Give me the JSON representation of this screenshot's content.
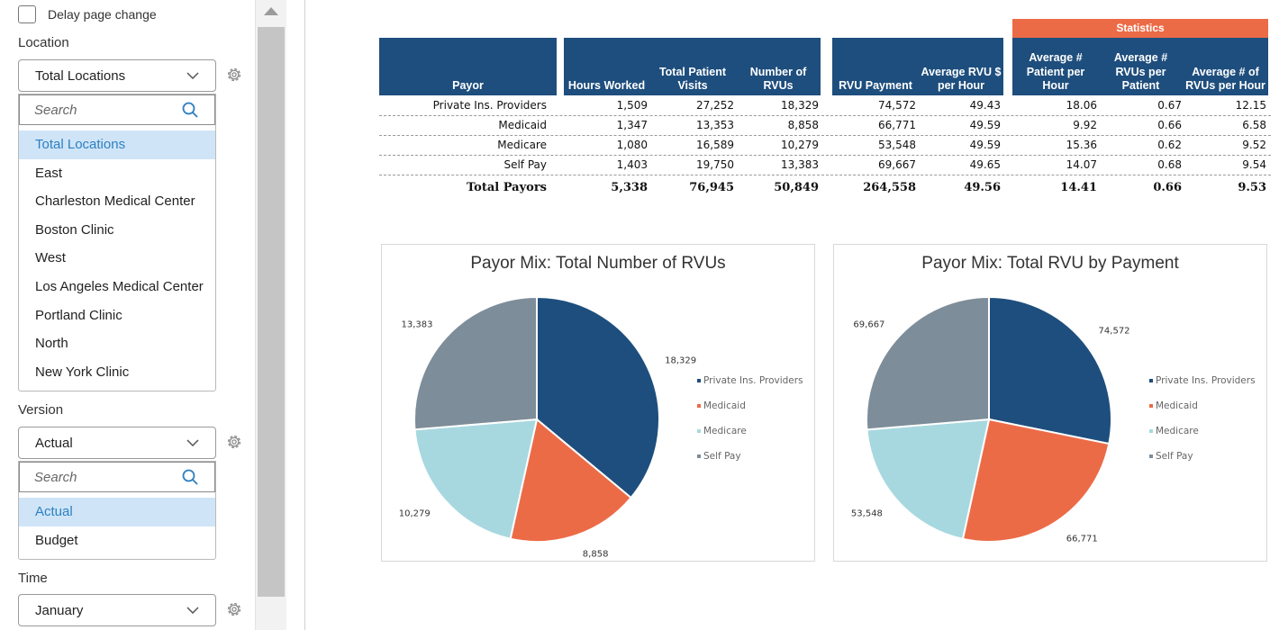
{
  "filters": {
    "delay_label": "Delay page change",
    "location": {
      "label": "Location",
      "selected": "Total Locations",
      "search_placeholder": "Search",
      "options": [
        "Total Locations",
        "East",
        "Charleston Medical Center",
        "Boston Clinic",
        "West",
        "Los Angeles Medical Center",
        "Portland Clinic",
        "North",
        "New York Clinic"
      ]
    },
    "version": {
      "label": "Version",
      "selected": "Actual",
      "search_placeholder": "Search",
      "options": [
        "Actual",
        "Budget"
      ]
    },
    "time": {
      "label": "Time",
      "selected": "January"
    }
  },
  "table": {
    "statistics_label": "Statistics",
    "headers": [
      "Payor",
      "Hours Worked",
      "Total Patient Visits",
      "Number of RVUs",
      "RVU Payment",
      "Average RVU $ per Hour",
      "Average # Patient per Hour",
      "Average # RVUs per Patient",
      "Average # of RVUs per Hour"
    ],
    "rows": [
      [
        "Private Ins. Providers",
        "1,509",
        "27,252",
        "18,329",
        "74,572",
        "49.43",
        "18.06",
        "0.67",
        "12.15"
      ],
      [
        "Medicaid",
        "1,347",
        "13,353",
        "8,858",
        "66,771",
        "49.59",
        "9.92",
        "0.66",
        "6.58"
      ],
      [
        "Medicare",
        "1,080",
        "16,589",
        "10,279",
        "53,548",
        "49.59",
        "15.36",
        "0.62",
        "9.52"
      ],
      [
        "Self Pay",
        "1,403",
        "19,750",
        "13,383",
        "69,667",
        "49.65",
        "14.07",
        "0.68",
        "9.54"
      ]
    ],
    "total": [
      "Total Payors",
      "5,338",
      "76,945",
      "50,849",
      "264,558",
      "49.56",
      "14.41",
      "0.66",
      "9.53"
    ]
  },
  "chart_data": [
    {
      "type": "pie",
      "title": "Payor Mix: Total Number of RVUs",
      "categories": [
        "Private Ins. Providers",
        "Medicaid",
        "Medicare",
        "Self Pay"
      ],
      "values": [
        18329,
        8858,
        10279,
        13383
      ],
      "labels": [
        "18,329",
        "8,858",
        "10,279",
        "13,383"
      ],
      "colors": [
        "#1e4e7d",
        "#ec6b47",
        "#a7d8e0",
        "#7d8d99"
      ],
      "legend": "right"
    },
    {
      "type": "pie",
      "title": "Payor Mix: Total RVU by Payment",
      "categories": [
        "Private Ins. Providers",
        "Medicaid",
        "Medicare",
        "Self Pay"
      ],
      "values": [
        74572,
        66771,
        53548,
        69667
      ],
      "labels": [
        "74,572",
        "66,771",
        "53,548",
        "69,667"
      ],
      "colors": [
        "#1e4e7d",
        "#ec6b47",
        "#a7d8e0",
        "#7d8d99"
      ],
      "legend": "right"
    }
  ]
}
